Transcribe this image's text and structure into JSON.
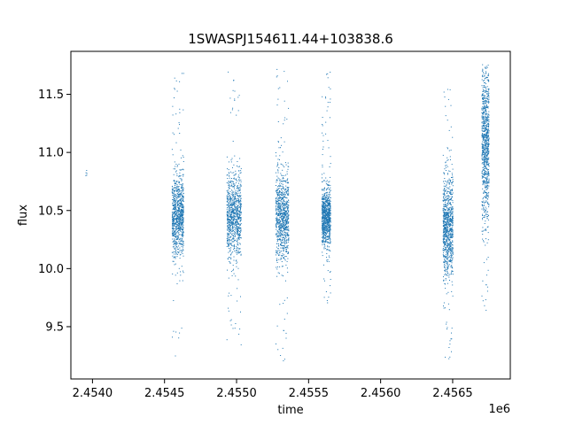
{
  "chart_data": {
    "type": "scatter",
    "title": "1SWASPJ154611.44+103838.6",
    "xlabel": "time",
    "ylabel": "flux",
    "x_offset_label": "1e6",
    "xlim": [
      2.45385,
      2.4569
    ],
    "ylim": [
      9.05,
      11.87
    ],
    "x_ticks": [
      2.454,
      2.4545,
      2.455,
      2.4555,
      2.456,
      2.4565
    ],
    "x_tick_labels": [
      "2.4540",
      "2.4545",
      "2.4550",
      "2.4555",
      "2.4560",
      "2.4565"
    ],
    "y_ticks": [
      9.5,
      10.0,
      10.5,
      11.0,
      11.5
    ],
    "y_tick_labels": [
      "9.5",
      "10.0",
      "10.5",
      "11.0",
      "11.5"
    ],
    "grid": false,
    "point_color": "#1f77b4",
    "clusters": [
      {
        "x_start": 2.45395,
        "x_end": 2.45396,
        "y_center": 10.82,
        "y_spread": 0.03,
        "outlier_ymin": 10.58,
        "outlier_ymax": 10.86
      },
      {
        "x_start": 2.45455,
        "x_end": 2.45463,
        "y_center": 10.45,
        "y_spread": 0.17,
        "outlier_ymin": 9.2,
        "outlier_ymax": 11.72
      },
      {
        "x_start": 2.45493,
        "x_end": 2.45503,
        "y_center": 10.45,
        "y_spread": 0.18,
        "outlier_ymin": 9.18,
        "outlier_ymax": 11.7
      },
      {
        "x_start": 2.45527,
        "x_end": 2.45536,
        "y_center": 10.45,
        "y_spread": 0.18,
        "outlier_ymin": 9.18,
        "outlier_ymax": 11.72
      },
      {
        "x_start": 2.45559,
        "x_end": 2.45565,
        "y_center": 10.45,
        "y_spread": 0.12,
        "outlier_ymin": 9.65,
        "outlier_ymax": 11.7
      },
      {
        "x_start": 2.45643,
        "x_end": 2.4565,
        "y_center": 10.35,
        "y_spread": 0.22,
        "outlier_ymin": 9.2,
        "outlier_ymax": 11.62
      },
      {
        "x_start": 2.4567,
        "x_end": 2.45675,
        "y_center": 11.1,
        "y_spread": 0.32,
        "outlier_ymin": 9.62,
        "outlier_ymax": 11.76
      }
    ]
  }
}
